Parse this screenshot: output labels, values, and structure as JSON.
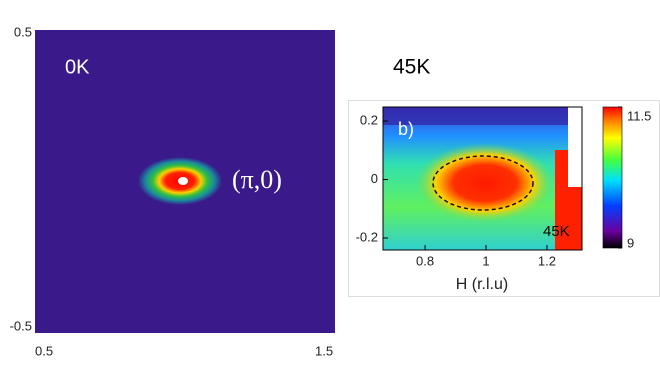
{
  "chart_data": [
    {
      "type": "heatmap",
      "title": "0K",
      "annotation": "(π,0)",
      "xlim": [
        0.5,
        1.5
      ],
      "xticks": [
        0.5,
        1.5
      ],
      "ylim": [
        -0.5,
        0.5
      ],
      "yticks": [
        0.5,
        -0.5
      ]
    },
    {
      "type": "heatmap",
      "title": "45K",
      "panel_label": "b)",
      "annotation": "45K",
      "x_label": "H (r.l.u)",
      "xlim": [
        0.662,
        1.315
      ],
      "xticks": [
        0.8,
        1,
        1.2
      ],
      "ylim": [
        -0.241,
        0.248
      ],
      "yticks": [
        0.2,
        0,
        -0.2
      ],
      "colorbar": {
        "lim": [
          9,
          11.5
        ],
        "ticks": [
          11.5,
          9
        ]
      }
    }
  ]
}
